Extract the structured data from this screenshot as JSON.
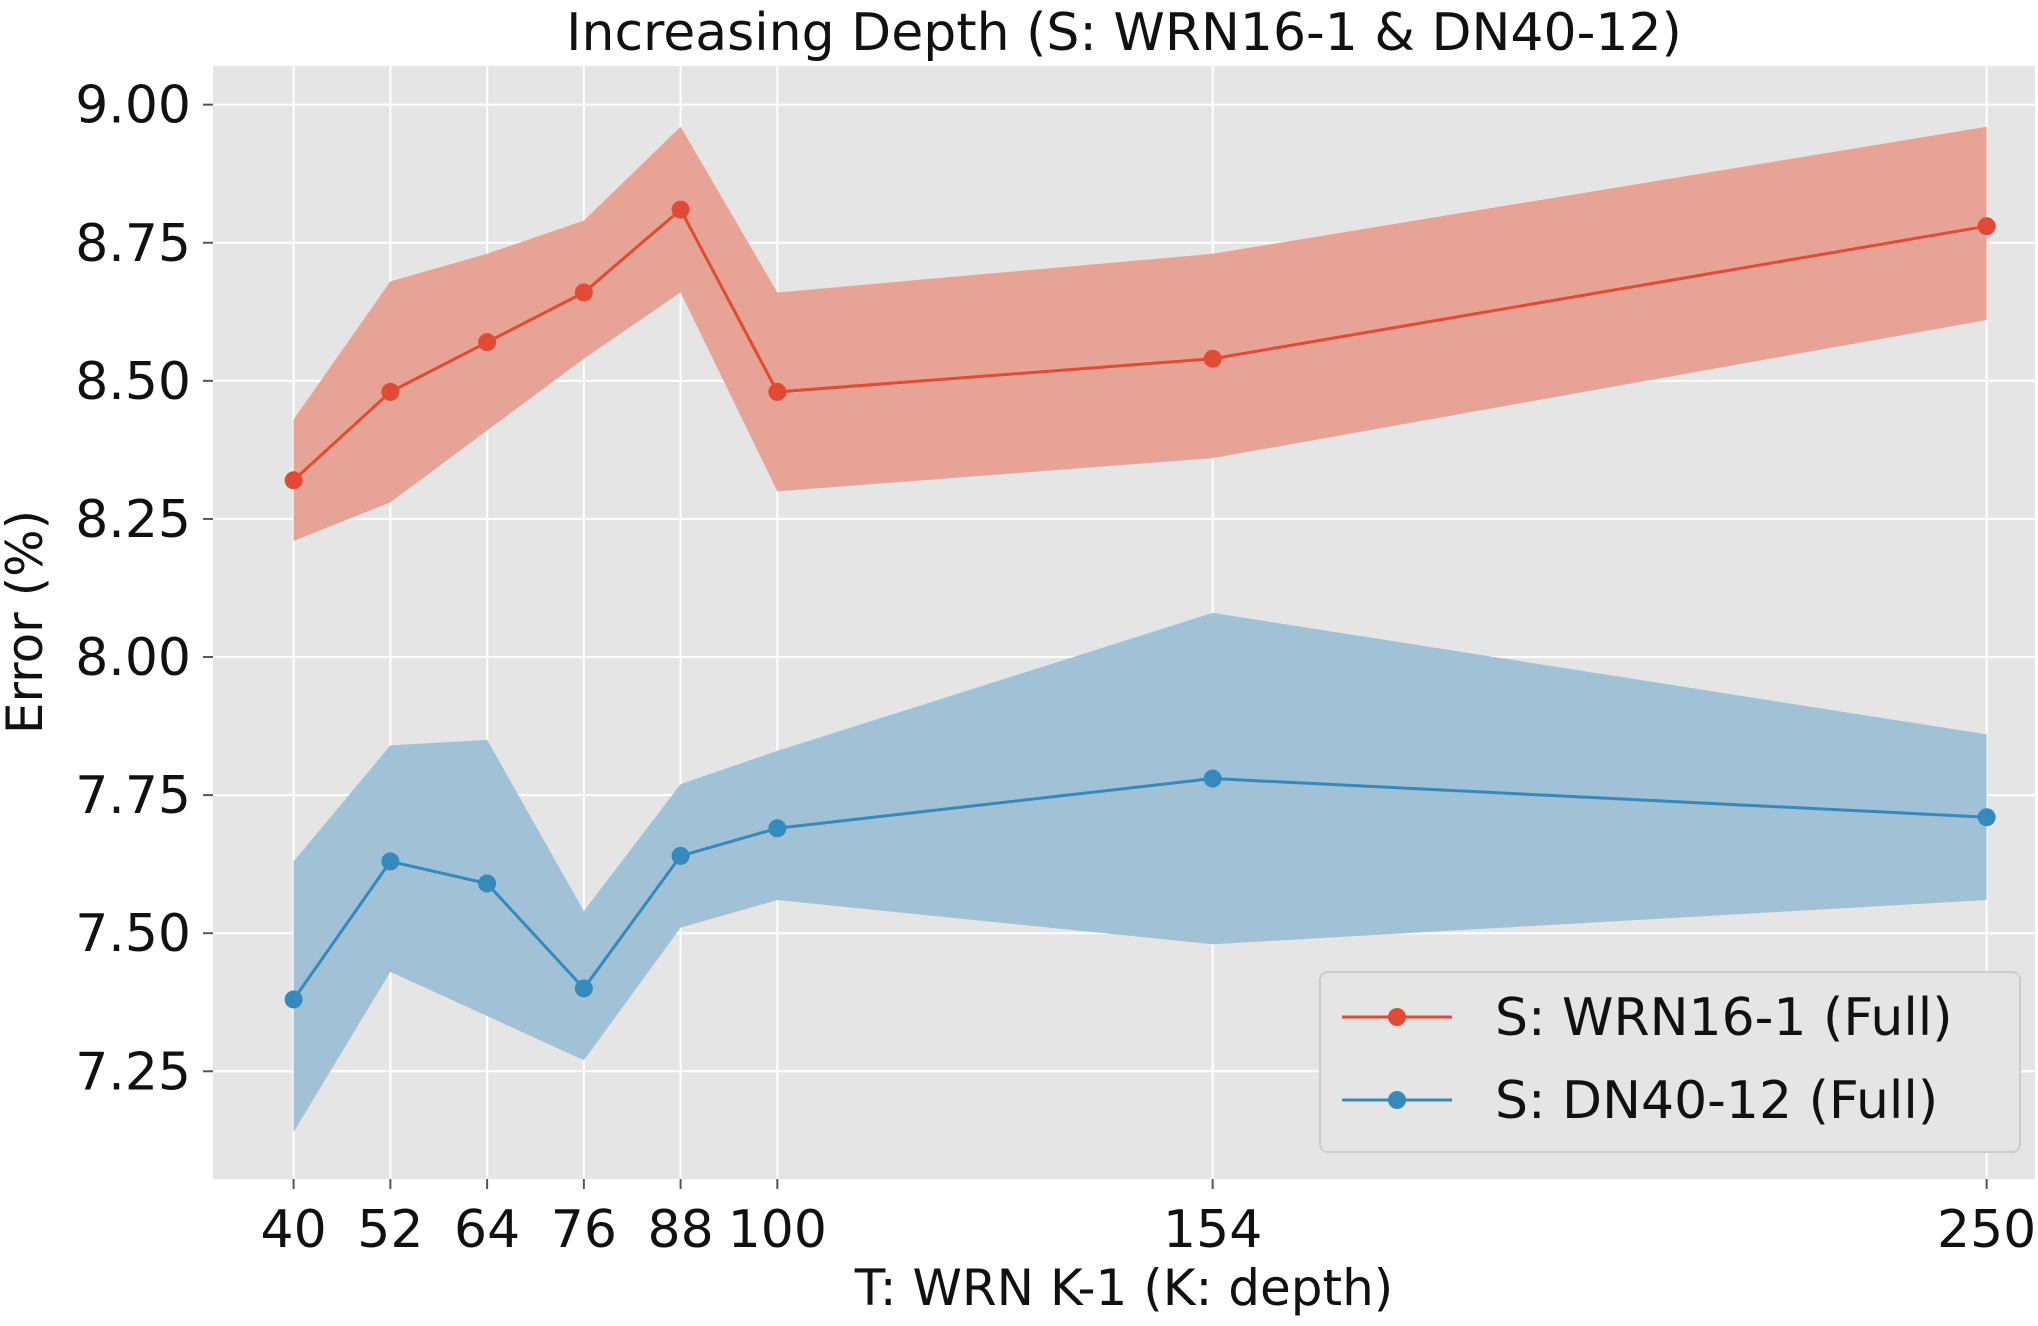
{
  "chart_data": {
    "type": "line",
    "title": "Increasing Depth (S: WRN16-1 & DN40-12)",
    "xlabel": "T: WRN K-1 (K: depth)",
    "ylabel": "Error (%)",
    "x": [
      40,
      52,
      64,
      76,
      88,
      100,
      154,
      250
    ],
    "x_tick_labels": [
      "40",
      "52",
      "64",
      "76",
      "88",
      "100",
      "154",
      "250"
    ],
    "xlim": [
      30,
      256
    ],
    "ylim": [
      7.055,
      9.07
    ],
    "y_ticks": [
      7.25,
      7.5,
      7.75,
      8.0,
      8.25,
      8.5,
      8.75,
      9.0
    ],
    "y_tick_labels": [
      "7.25",
      "7.50",
      "7.75",
      "8.00",
      "8.25",
      "8.50",
      "8.75",
      "9.00"
    ],
    "grid": true,
    "legend_position": "lower-right",
    "series": [
      {
        "name": "S: WRN16-1 (Full)",
        "color": "#e24a33",
        "band_color": "#e8a397",
        "values": [
          8.32,
          8.48,
          8.57,
          8.66,
          8.81,
          8.48,
          8.54,
          8.78
        ],
        "upper": [
          8.43,
          8.68,
          8.73,
          8.79,
          8.96,
          8.66,
          8.73,
          8.96
        ],
        "lower": [
          8.21,
          8.28,
          8.41,
          8.54,
          8.66,
          8.3,
          8.36,
          8.61
        ]
      },
      {
        "name": "S: DN40-12 (Full)",
        "color": "#348abd",
        "band_color": "#a1c1d6",
        "values": [
          7.38,
          7.63,
          7.59,
          7.4,
          7.64,
          7.69,
          7.78,
          7.71
        ],
        "upper": [
          7.63,
          7.84,
          7.85,
          7.54,
          7.77,
          7.83,
          8.08,
          7.86
        ],
        "lower": [
          7.14,
          7.43,
          7.35,
          7.27,
          7.51,
          7.56,
          7.48,
          7.56
        ]
      }
    ]
  }
}
